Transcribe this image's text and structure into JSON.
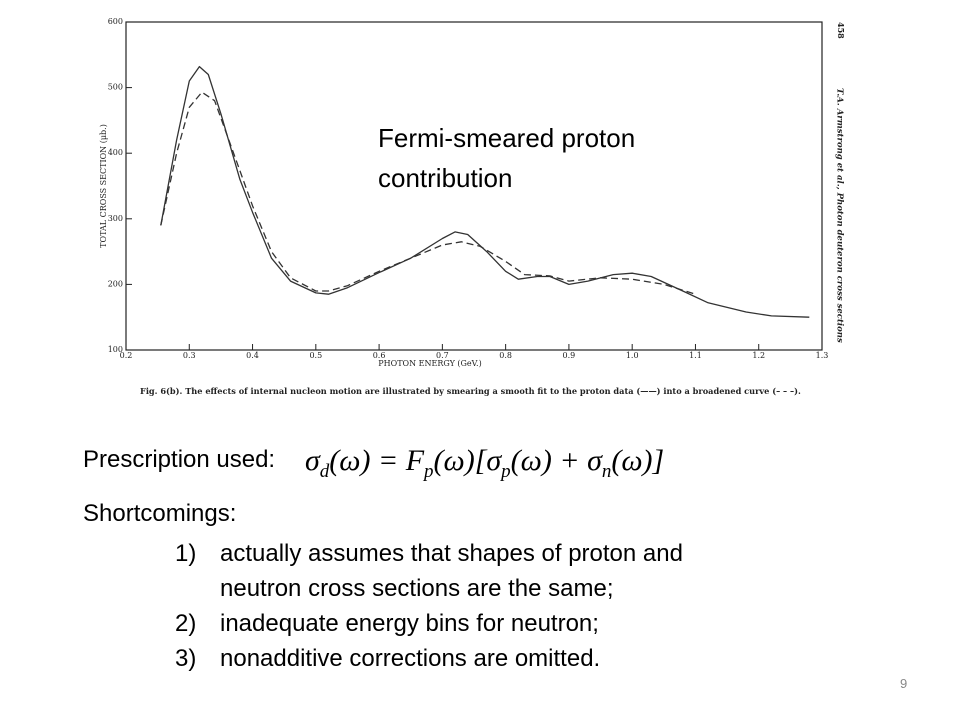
{
  "chart_data": {
    "type": "line",
    "x_label": "PHOTON ENERGY (GeV.)",
    "y_label": "TOTAL CROSS SECTION (μb.)",
    "caption": "Fig. 6(b). The effects of internal nucleon motion are illustrated by smearing a smooth fit to the proton data (——) into a broadened curve (– – –).",
    "page_header": "458",
    "running_header": "T.A. Armstrong et al., Photon deuteron cross sections",
    "annotation": "Fermi-smeared proton contribution",
    "xlim": [
      0.2,
      1.3
    ],
    "xticks": [
      0.2,
      0.3,
      0.4,
      0.5,
      0.6,
      0.7,
      0.8,
      0.9,
      {
        "value": 1,
        "label": "1.0"
      },
      1.1,
      1.2,
      1.3
    ],
    "ylim": [
      100,
      600
    ],
    "yticks": [
      100,
      200,
      300,
      400,
      500,
      600
    ],
    "grid": false,
    "series": [
      {
        "color": "#333333",
        "dash": false,
        "x": [
          0.255,
          0.28,
          0.3,
          0.316,
          0.33,
          0.35,
          0.38,
          0.4,
          0.43,
          0.46,
          0.5,
          0.52,
          0.55,
          0.6,
          0.65,
          0.7,
          0.72,
          0.74,
          0.77,
          0.8,
          0.82,
          0.85,
          0.87,
          0.9,
          0.93,
          0.97,
          1.0,
          1.03,
          1.08,
          1.12,
          1.18,
          1.22,
          1.28
        ],
        "values": [
          290,
          420,
          510,
          532,
          520,
          460,
          360,
          310,
          240,
          205,
          187,
          185,
          195,
          218,
          240,
          270,
          280,
          276,
          250,
          220,
          208,
          212,
          212,
          200,
          205,
          215,
          217,
          212,
          190,
          172,
          158,
          152,
          150
        ]
      },
      {
        "color": "#333333",
        "dash": true,
        "x": [
          0.255,
          0.28,
          0.3,
          0.32,
          0.34,
          0.37,
          0.4,
          0.43,
          0.46,
          0.5,
          0.52,
          0.55,
          0.6,
          0.65,
          0.7,
          0.73,
          0.76,
          0.8,
          0.83,
          0.87,
          0.9,
          0.95,
          1.0,
          1.05,
          1.1
        ],
        "values": [
          290,
          400,
          470,
          493,
          480,
          400,
          320,
          250,
          210,
          190,
          190,
          198,
          220,
          240,
          260,
          265,
          258,
          235,
          215,
          213,
          205,
          210,
          208,
          200,
          185
        ]
      }
    ]
  },
  "slide": {
    "prescription_label": "Prescription used:",
    "equation": [
      "σ",
      "d",
      "(ω) = F",
      "p",
      "(ω)[σ",
      "p",
      "(ω) + σ",
      "n",
      "(ω)]"
    ],
    "shortcomings_label": "Shortcomings:",
    "items": [
      {
        "number": "1)",
        "text": "actually assumes that shapes of proton and neutron cross sections are the same;"
      },
      {
        "number": "2)",
        "text": "inadequate energy bins for neutron;"
      },
      {
        "number": "3)",
        "text": "nonadditive corrections are omitted."
      }
    ],
    "page_number": 9
  }
}
